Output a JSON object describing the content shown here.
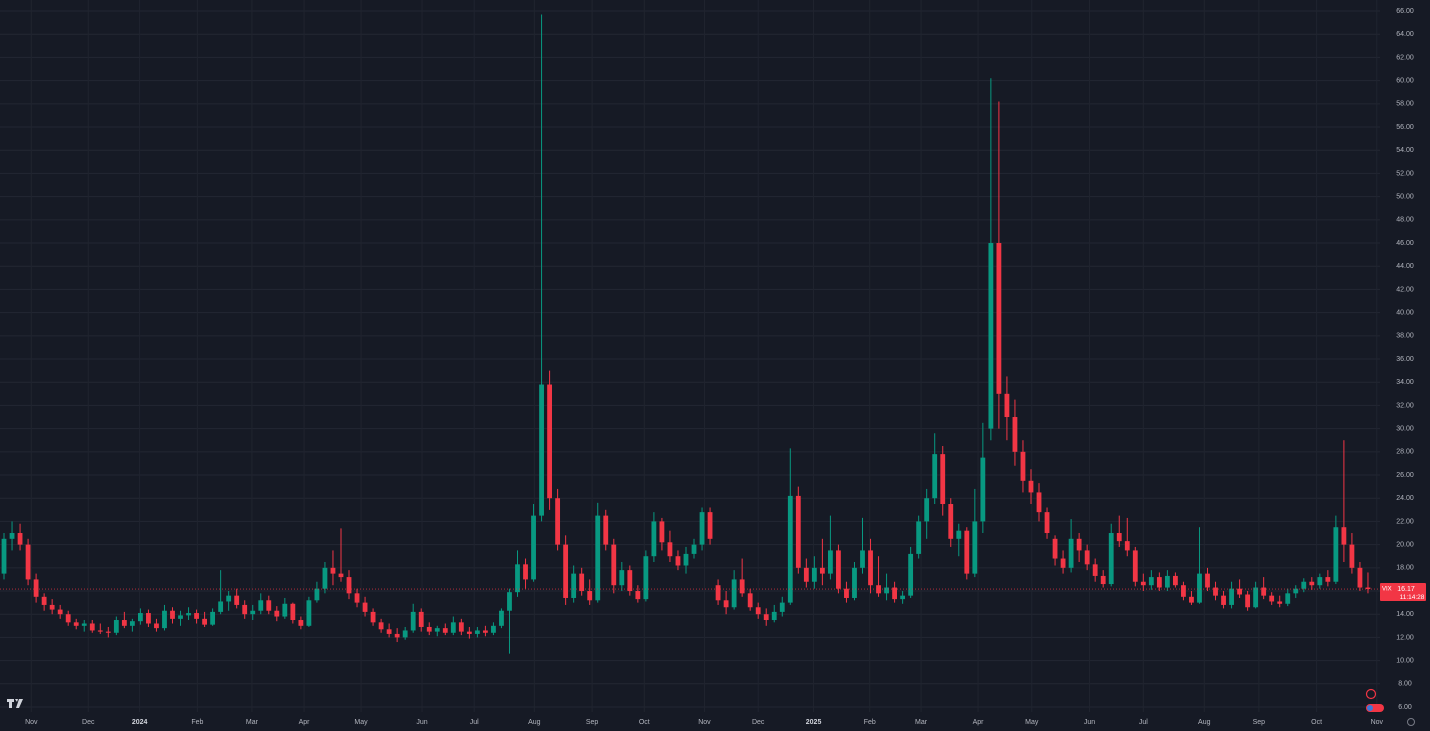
{
  "chart_data": {
    "type": "candlestick",
    "symbol": "VIX",
    "last_price": 16.17,
    "countdown": "11:14:28",
    "up_color": "#089981",
    "down_color": "#f23645",
    "grid": true,
    "ylim": [
      5.57,
      66.95
    ],
    "yticks": [
      {
        "value": 6,
        "label": "6.00"
      },
      {
        "value": 8,
        "label": "8.00"
      },
      {
        "value": 10,
        "label": "10.00"
      },
      {
        "value": 12,
        "label": "12.00"
      },
      {
        "value": 14,
        "label": "14.00"
      },
      {
        "value": 16,
        "label": "16.00"
      },
      {
        "value": 18,
        "label": "18.00"
      },
      {
        "value": 20,
        "label": "20.00"
      },
      {
        "value": 22,
        "label": "22.00"
      },
      {
        "value": 24,
        "label": "24.00"
      },
      {
        "value": 26,
        "label": "26.00"
      },
      {
        "value": 28,
        "label": "28.00"
      },
      {
        "value": 30,
        "label": "30.00"
      },
      {
        "value": 32,
        "label": "32.00"
      },
      {
        "value": 34,
        "label": "34.00"
      },
      {
        "value": 36,
        "label": "36.00"
      },
      {
        "value": 38,
        "label": "38.00"
      },
      {
        "value": 40,
        "label": "40.00"
      },
      {
        "value": 42,
        "label": "42.00"
      },
      {
        "value": 44,
        "label": "44.00"
      },
      {
        "value": 46,
        "label": "46.00"
      },
      {
        "value": 48,
        "label": "48.00"
      },
      {
        "value": 50,
        "label": "50.00"
      },
      {
        "value": 52,
        "label": "52.00"
      },
      {
        "value": 54,
        "label": "54.00"
      },
      {
        "value": 56,
        "label": "56.00"
      },
      {
        "value": 58,
        "label": "58.00"
      },
      {
        "value": 60,
        "label": "60.00"
      },
      {
        "value": 62,
        "label": "62.00"
      },
      {
        "value": 64,
        "label": "64.00"
      },
      {
        "value": 66,
        "label": "66.00"
      }
    ],
    "xlim": [
      -0.5,
      171.5
    ],
    "xticks": [
      {
        "value": 3.4,
        "label": "Nov"
      },
      {
        "value": 10.5,
        "label": "Dec"
      },
      {
        "value": 16.9,
        "label": "2024"
      },
      {
        "value": 24.1,
        "label": "Feb"
      },
      {
        "value": 30.9,
        "label": "Mar"
      },
      {
        "value": 37.4,
        "label": "Apr"
      },
      {
        "value": 44.5,
        "label": "May"
      },
      {
        "value": 52.1,
        "label": "Jun"
      },
      {
        "value": 58.6,
        "label": "Jul"
      },
      {
        "value": 66.1,
        "label": "Aug"
      },
      {
        "value": 73.3,
        "label": "Sep"
      },
      {
        "value": 79.8,
        "label": "Oct"
      },
      {
        "value": 87.3,
        "label": "Nov"
      },
      {
        "value": 94,
        "label": "Dec"
      },
      {
        "value": 100.9,
        "label": "2025"
      },
      {
        "value": 107.9,
        "label": "Feb"
      },
      {
        "value": 114.3,
        "label": "Mar"
      },
      {
        "value": 121.4,
        "label": "Apr"
      },
      {
        "value": 128.1,
        "label": "May"
      },
      {
        "value": 135.3,
        "label": "Jun"
      },
      {
        "value": 142,
        "label": "Jul"
      },
      {
        "value": 149.6,
        "label": "Aug"
      },
      {
        "value": 156.4,
        "label": "Sep"
      },
      {
        "value": 163.6,
        "label": "Oct"
      },
      {
        "value": 171.1,
        "label": "Nov"
      }
    ],
    "ohlc": [
      [
        17.5,
        21,
        17,
        20.5
      ],
      [
        20.5,
        22,
        19.5,
        21
      ],
      [
        21,
        21.8,
        19.5,
        20
      ],
      [
        20,
        20.5,
        16.5,
        17
      ],
      [
        17,
        17.5,
        15,
        15.5
      ],
      [
        15.5,
        15.8,
        14.3,
        14.8
      ],
      [
        14.8,
        15.3,
        14,
        14.4
      ],
      [
        14.4,
        14.8,
        13.6,
        14
      ],
      [
        14,
        14.3,
        13,
        13.3
      ],
      [
        13.3,
        13.6,
        12.7,
        13
      ],
      [
        13,
        13.5,
        12.5,
        13.2
      ],
      [
        13.2,
        13.5,
        12.4,
        12.6
      ],
      [
        12.6,
        13.2,
        12.3,
        12.5
      ],
      [
        12.5,
        12.9,
        12,
        12.4
      ],
      [
        12.4,
        13.8,
        12.2,
        13.5
      ],
      [
        13.5,
        14.2,
        12.8,
        13
      ],
      [
        13,
        13.6,
        12.5,
        13.4
      ],
      [
        13.4,
        14.5,
        13.1,
        14.1
      ],
      [
        14.1,
        14.4,
        12.9,
        13.2
      ],
      [
        13.2,
        13.6,
        12.5,
        12.8
      ],
      [
        12.8,
        14.8,
        12.6,
        14.3
      ],
      [
        14.3,
        14.6,
        13.2,
        13.6
      ],
      [
        13.6,
        14.3,
        13,
        13.9
      ],
      [
        13.9,
        14.6,
        13.5,
        14.1
      ],
      [
        14.1,
        14.4,
        13.2,
        13.6
      ],
      [
        13.6,
        14.2,
        12.9,
        13.1
      ],
      [
        13.1,
        14.5,
        13,
        14.2
      ],
      [
        14.2,
        17.8,
        14,
        15.1
      ],
      [
        15.1,
        16,
        14.3,
        15.6
      ],
      [
        15.6,
        16.2,
        14.5,
        14.8
      ],
      [
        14.8,
        15.2,
        13.6,
        14
      ],
      [
        14,
        14.8,
        13.5,
        14.3
      ],
      [
        14.3,
        15.8,
        14,
        15.2
      ],
      [
        15.2,
        15.6,
        14,
        14.3
      ],
      [
        14.3,
        14.7,
        13.4,
        13.8
      ],
      [
        13.8,
        15.4,
        13.6,
        14.9
      ],
      [
        14.9,
        15,
        13.2,
        13.5
      ],
      [
        13.5,
        13.8,
        12.7,
        13
      ],
      [
        13,
        15.5,
        12.9,
        15.2
      ],
      [
        15.2,
        16.8,
        15,
        16.2
      ],
      [
        16.2,
        18.5,
        15.8,
        18
      ],
      [
        18,
        19.5,
        16.5,
        17.5
      ],
      [
        17.5,
        21.4,
        16.8,
        17.2
      ],
      [
        17.2,
        17.8,
        15.3,
        15.8
      ],
      [
        15.8,
        16.2,
        14.6,
        15
      ],
      [
        15,
        15.5,
        13.8,
        14.2
      ],
      [
        14.2,
        14.5,
        13,
        13.3
      ],
      [
        13.3,
        13.6,
        12.4,
        12.7
      ],
      [
        12.7,
        13.2,
        12,
        12.3
      ],
      [
        12.3,
        12.8,
        11.6,
        12
      ],
      [
        12,
        12.9,
        11.8,
        12.6
      ],
      [
        12.6,
        14.9,
        12.4,
        14.2
      ],
      [
        14.2,
        14.5,
        12.5,
        12.9
      ],
      [
        12.9,
        13.3,
        12.2,
        12.5
      ],
      [
        12.5,
        13,
        12.1,
        12.8
      ],
      [
        12.8,
        13.2,
        12.2,
        12.4
      ],
      [
        12.4,
        13.8,
        12.2,
        13.3
      ],
      [
        13.3,
        13.6,
        12.2,
        12.5
      ],
      [
        12.5,
        12.9,
        11.9,
        12.3
      ],
      [
        12.3,
        12.9,
        12,
        12.6
      ],
      [
        12.6,
        13,
        12.1,
        12.4
      ],
      [
        12.4,
        13.3,
        12.2,
        13
      ],
      [
        13,
        14.5,
        12.8,
        14.3
      ],
      [
        14.3,
        16.2,
        10.6,
        15.9
      ],
      [
        15.9,
        19.5,
        15.5,
        18.3
      ],
      [
        18.3,
        18.8,
        16.2,
        17
      ],
      [
        17,
        23.5,
        16.8,
        22.5
      ],
      [
        22.5,
        65.7,
        22,
        33.8
      ],
      [
        33.8,
        35,
        23,
        24
      ],
      [
        24,
        24.8,
        19.5,
        20
      ],
      [
        20,
        20.8,
        14.8,
        15.4
      ],
      [
        15.4,
        18.2,
        15,
        17.5
      ],
      [
        17.5,
        18,
        15.6,
        16
      ],
      [
        16,
        17,
        14.8,
        15.2
      ],
      [
        15.2,
        23.6,
        15,
        22.5
      ],
      [
        22.5,
        23,
        19.5,
        20
      ],
      [
        20,
        20.5,
        15.8,
        16.5
      ],
      [
        16.5,
        18.5,
        16,
        17.8
      ],
      [
        17.8,
        18.2,
        15.6,
        16
      ],
      [
        16,
        16.5,
        15,
        15.3
      ],
      [
        15.3,
        19.5,
        15.1,
        19
      ],
      [
        19,
        22.8,
        18.5,
        22
      ],
      [
        22,
        22.3,
        19.5,
        20.2
      ],
      [
        20.2,
        21.2,
        18.5,
        19
      ],
      [
        19,
        19.5,
        17.8,
        18.2
      ],
      [
        18.2,
        19.8,
        17.5,
        19.2
      ],
      [
        19.2,
        20.5,
        18.8,
        20
      ],
      [
        20,
        23.2,
        19.5,
        22.8
      ],
      [
        22.8,
        23.2,
        20,
        20.5
      ],
      [
        16.5,
        17,
        14.8,
        15.2
      ],
      [
        15.2,
        16,
        14,
        14.6
      ],
      [
        14.6,
        17.8,
        14.4,
        17
      ],
      [
        17,
        18.8,
        15.5,
        15.8
      ],
      [
        15.8,
        16.2,
        14.3,
        14.6
      ],
      [
        14.6,
        15,
        13.6,
        14
      ],
      [
        14,
        14.5,
        13,
        13.5
      ],
      [
        13.5,
        14.8,
        13.3,
        14.2
      ],
      [
        14.2,
        15.5,
        13.8,
        15
      ],
      [
        15,
        28.3,
        14.8,
        24.2
      ],
      [
        24.2,
        25,
        17.5,
        18
      ],
      [
        18,
        18.8,
        16.3,
        16.8
      ],
      [
        16.8,
        19,
        16.2,
        18
      ],
      [
        18,
        20.5,
        16.5,
        17.5
      ],
      [
        17.5,
        22.5,
        17,
        19.5
      ],
      [
        19.5,
        20,
        15.8,
        16.2
      ],
      [
        16.2,
        16.8,
        15,
        15.4
      ],
      [
        15.4,
        18.5,
        15.2,
        18
      ],
      [
        18,
        22.3,
        17.5,
        19.5
      ],
      [
        19.5,
        20.5,
        15.8,
        16.5
      ],
      [
        16.5,
        19,
        15.5,
        15.8
      ],
      [
        15.8,
        17.5,
        15.2,
        16.3
      ],
      [
        16.3,
        16.8,
        15,
        15.3
      ],
      [
        15.3,
        16,
        14.9,
        15.6
      ],
      [
        15.6,
        19.8,
        15.4,
        19.2
      ],
      [
        19.2,
        22.5,
        18.8,
        22
      ],
      [
        22,
        24.8,
        20.5,
        24
      ],
      [
        24,
        29.6,
        23.5,
        27.8
      ],
      [
        27.8,
        28.5,
        22.5,
        23.5
      ],
      [
        23.5,
        24,
        19.8,
        20.5
      ],
      [
        20.5,
        21.8,
        19,
        21.2
      ],
      [
        21.2,
        21.5,
        17,
        17.5
      ],
      [
        17.5,
        24.8,
        17.2,
        22
      ],
      [
        22,
        30.5,
        21,
        27.5
      ],
      [
        30,
        60.2,
        29,
        46
      ],
      [
        46,
        58.2,
        30,
        33
      ],
      [
        33,
        34.5,
        29,
        31
      ],
      [
        31,
        32.5,
        26.8,
        28
      ],
      [
        28,
        29,
        24.5,
        25.5
      ],
      [
        25.5,
        26.5,
        23.5,
        24.5
      ],
      [
        24.5,
        25.3,
        22,
        22.8
      ],
      [
        22.8,
        23.2,
        20.5,
        21
      ],
      [
        20.5,
        20.8,
        18.2,
        18.8
      ],
      [
        18.8,
        19.5,
        17.5,
        18
      ],
      [
        18,
        22.2,
        17.6,
        20.5
      ],
      [
        20.5,
        21,
        18.5,
        19.5
      ],
      [
        19.5,
        20,
        17.8,
        18.3
      ],
      [
        18.3,
        18.8,
        16.8,
        17.3
      ],
      [
        17.3,
        17.8,
        16.3,
        16.6
      ],
      [
        16.6,
        21.8,
        16.4,
        21
      ],
      [
        21,
        22.5,
        19.8,
        20.3
      ],
      [
        20.3,
        22.3,
        19,
        19.5
      ],
      [
        19.5,
        19.8,
        16.4,
        16.8
      ],
      [
        16.8,
        17.5,
        16,
        16.5
      ],
      [
        16.5,
        17.8,
        16.1,
        17.2
      ],
      [
        17.2,
        17.6,
        16,
        16.3
      ],
      [
        16.3,
        17.8,
        16,
        17.3
      ],
      [
        17.3,
        17.6,
        16.3,
        16.5
      ],
      [
        16.5,
        16.8,
        15.2,
        15.5
      ],
      [
        15.5,
        16,
        14.8,
        15
      ],
      [
        15,
        21.5,
        14.9,
        17.5
      ],
      [
        17.5,
        18,
        16,
        16.3
      ],
      [
        16.3,
        16.8,
        15.2,
        15.6
      ],
      [
        15.6,
        16,
        14.5,
        14.8
      ],
      [
        14.8,
        16.8,
        14.5,
        16.2
      ],
      [
        16.2,
        17,
        15.4,
        15.7
      ],
      [
        15.7,
        16,
        14.3,
        14.6
      ],
      [
        14.6,
        16.8,
        14.5,
        16.3
      ],
      [
        16.3,
        17.2,
        15.3,
        15.6
      ],
      [
        15.6,
        15.9,
        14.8,
        15.1
      ],
      [
        15.1,
        15.6,
        14.6,
        14.9
      ],
      [
        14.9,
        16.2,
        14.7,
        15.8
      ],
      [
        15.8,
        16.5,
        15.4,
        16.2
      ],
      [
        16.2,
        17.1,
        15.9,
        16.8
      ],
      [
        16.8,
        17.2,
        16.1,
        16.5
      ],
      [
        16.5,
        17.5,
        16.2,
        17.2
      ],
      [
        17.2,
        17.8,
        16.4,
        16.8
      ],
      [
        16.8,
        22.5,
        16.6,
        21.5
      ],
      [
        21.5,
        29,
        18.5,
        20
      ],
      [
        20,
        21,
        17.5,
        18
      ],
      [
        18,
        18.5,
        16,
        16.3
      ],
      [
        16.3,
        17.6,
        15.8,
        16.17
      ]
    ]
  }
}
